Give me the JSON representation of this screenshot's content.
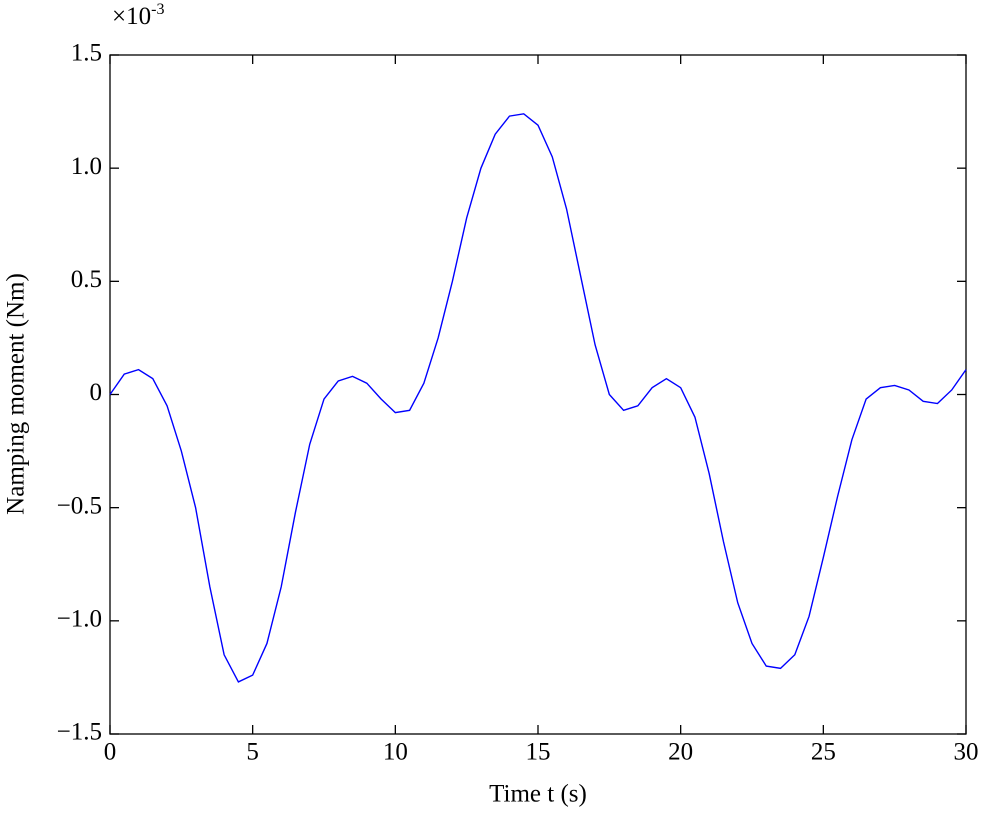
{
  "chart_data": {
    "type": "line",
    "xlabel": "Time t (s)",
    "ylabel": "Namping moment (Nm)",
    "y_multiplier": "×10",
    "y_exponent": "-3",
    "x": [
      0,
      0.5,
      1,
      1.5,
      2,
      2.5,
      3,
      3.5,
      4,
      4.5,
      5,
      5.5,
      6,
      6.5,
      7,
      7.5,
      8,
      8.5,
      9,
      9.5,
      10,
      10.5,
      11,
      11.5,
      12,
      12.5,
      13,
      13.5,
      14,
      14.5,
      15,
      15.5,
      16,
      16.5,
      17,
      17.5,
      18,
      18.5,
      19,
      19.5,
      20,
      20.5,
      21,
      21.5,
      22,
      22.5,
      23,
      23.5,
      24,
      24.5,
      25,
      25.5,
      26,
      26.5,
      27,
      27.5,
      28,
      28.5,
      29,
      29.5,
      30
    ],
    "series": [
      {
        "color": "#0000ff",
        "values": [
          0,
          0.09,
          0.11,
          0.07,
          -0.05,
          -0.25,
          -0.5,
          -0.85,
          -1.15,
          -1.27,
          -1.24,
          -1.1,
          -0.85,
          -0.52,
          -0.22,
          -0.02,
          0.06,
          0.08,
          0.05,
          -0.02,
          -0.08,
          -0.07,
          0.05,
          0.25,
          0.5,
          0.78,
          1.0,
          1.15,
          1.23,
          1.24,
          1.19,
          1.05,
          0.82,
          0.52,
          0.22,
          0.0,
          -0.07,
          -0.05,
          0.03,
          0.07,
          0.03,
          -0.1,
          -0.35,
          -0.65,
          -0.92,
          -1.1,
          -1.2,
          -1.21,
          -1.15,
          -0.98,
          -0.72,
          -0.45,
          -0.2,
          -0.02,
          0.03,
          0.04,
          0.02,
          -0.03,
          -0.04,
          0.02,
          0.11
        ]
      }
    ],
    "xlim": [
      0,
      30
    ],
    "xticks": [
      0,
      5,
      10,
      15,
      20,
      25,
      30
    ],
    "ylim": [
      -1.5,
      1.5
    ],
    "yticks": [
      {
        "value": -1.5,
        "label": "−1.5"
      },
      {
        "value": -1,
        "label": "−1.0"
      },
      {
        "value": -0.5,
        "label": "−0.5"
      },
      0,
      0.5,
      {
        "value": 1,
        "label": "1.0"
      },
      1.5
    ]
  }
}
